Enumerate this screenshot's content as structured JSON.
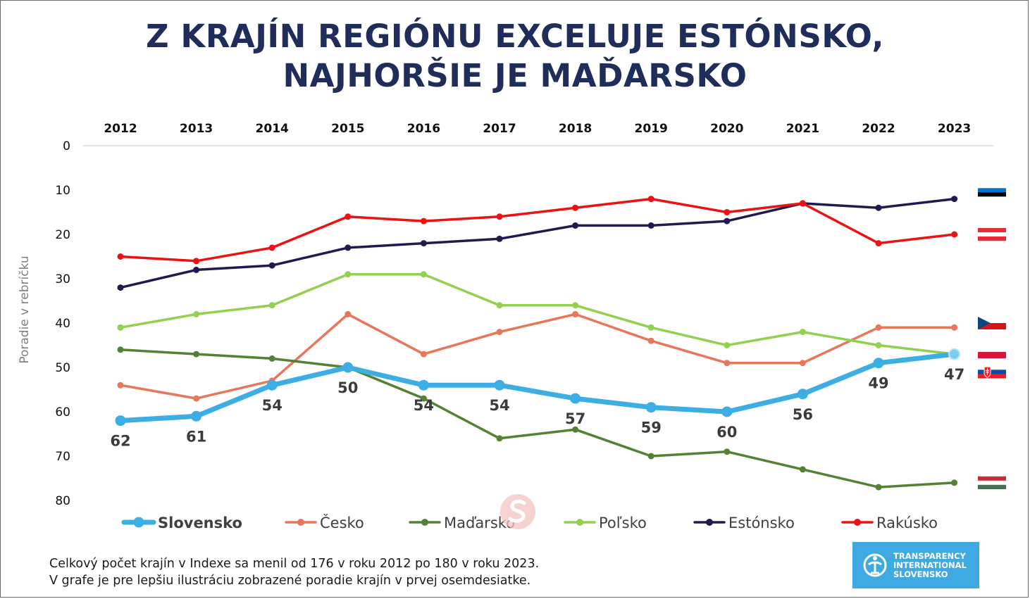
{
  "title_lines": [
    "Z KRAJÍN REGIÓNU EXCELUJE ESTÓNSKO,",
    "NAJHORŠIE JE MAĎARSKO"
  ],
  "footnote_lines": [
    "Celkový počet krajín v Indexe sa menil od 176 v roku 2012 po 180 v roku 2023.",
    "V grafe je pre lepšiu ilustráciu zobrazené poradie krajín v prvej osemdesiatke."
  ],
  "logo": {
    "lines": [
      "TRANSPARENCY",
      "INTERNATIONAL",
      "SLOVENSKO"
    ],
    "icon": "ti-globe-icon",
    "color": "#3fa9e1"
  },
  "watermark_icon": "s-logo-watermark-icon",
  "chart_data": {
    "type": "line",
    "x": [
      "2012",
      "2013",
      "2014",
      "2015",
      "2016",
      "2017",
      "2018",
      "2019",
      "2020",
      "2021",
      "2022",
      "2023"
    ],
    "ylabel": "Poradie v rebríčku",
    "ylim": [
      0,
      80
    ],
    "y_inverted": true,
    "y_ticks": [
      0,
      10,
      20,
      30,
      40,
      50,
      60,
      70,
      80
    ],
    "x_axis_position": "top",
    "grid": false,
    "legend_position": "bottom",
    "series": [
      {
        "name": "Slovensko",
        "color": "#3caee4",
        "values": [
          62,
          61,
          54,
          50,
          54,
          54,
          57,
          59,
          60,
          56,
          49,
          47
        ],
        "data_labels": true,
        "highlight": true,
        "flag": "slovakia-flag-icon"
      },
      {
        "name": "Česko",
        "color": "#e8765a",
        "values": [
          54,
          57,
          53,
          38,
          47,
          42,
          38,
          44,
          49,
          49,
          41,
          41
        ],
        "flag": "czech-flag-icon"
      },
      {
        "name": "Maďarsko",
        "color": "#548235",
        "values": [
          46,
          47,
          48,
          50,
          57,
          66,
          64,
          70,
          69,
          73,
          77,
          76
        ],
        "flag": "hungary-flag-icon"
      },
      {
        "name": "Poľsko",
        "color": "#92d050",
        "values": [
          41,
          38,
          36,
          29,
          29,
          36,
          36,
          41,
          45,
          42,
          45,
          47
        ],
        "flag": "poland-flag-icon"
      },
      {
        "name": "Estónsko",
        "color": "#1f1b4f",
        "values": [
          32,
          28,
          27,
          23,
          22,
          21,
          18,
          18,
          17,
          13,
          14,
          12
        ],
        "flag": "estonia-flag-icon"
      },
      {
        "name": "Rakúsko",
        "color": "#ee1111",
        "values": [
          25,
          26,
          23,
          16,
          17,
          16,
          14,
          12,
          15,
          13,
          22,
          20
        ],
        "flag": "austria-flag-icon"
      }
    ]
  }
}
